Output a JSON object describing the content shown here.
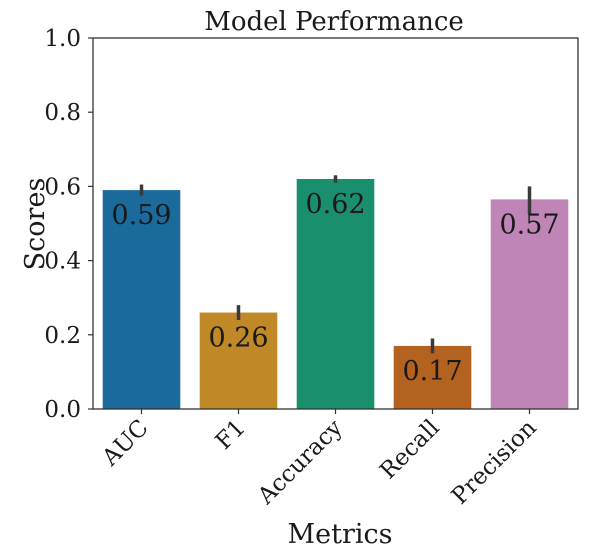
{
  "chart_data": {
    "type": "bar",
    "title": "Model Performance",
    "xlabel": "Metrics",
    "ylabel": "Scores",
    "ylim": [
      0,
      1.0
    ],
    "yticks": [
      "0.0",
      "0.2",
      "0.4",
      "0.6",
      "0.8",
      "1.0"
    ],
    "grid": false,
    "categories": [
      "AUC",
      "F1",
      "Accuracy",
      "Recall",
      "Precision"
    ],
    "values": [
      0.59,
      0.26,
      0.62,
      0.17,
      0.565
    ],
    "data_labels": [
      "0.59",
      "0.26",
      "0.62",
      "0.17",
      "0.57"
    ],
    "error_low": [
      0.575,
      0.24,
      0.61,
      0.15,
      0.525
    ],
    "error_high": [
      0.605,
      0.28,
      0.63,
      0.19,
      0.6
    ],
    "colors": [
      "#1a6a9c",
      "#c08827",
      "#1a8f6d",
      "#b4621f",
      "#bf85b7"
    ],
    "error_color": "#3a3a3a"
  }
}
